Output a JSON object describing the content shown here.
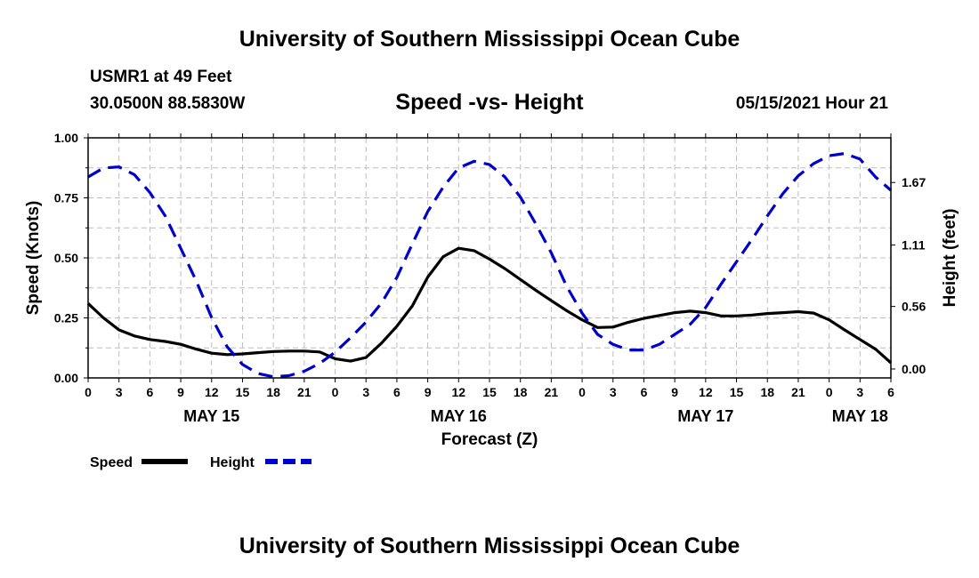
{
  "header": {
    "title": "University of Southern Mississippi Ocean Cube",
    "station": "USMR1 at 49 Feet",
    "coords": "30.0500N  88.5830W",
    "subtitle": "Speed -vs- Height",
    "datetime": "05/15/2021 Hour 21"
  },
  "footer": {
    "title": "University of Southern Mississippi Ocean Cube"
  },
  "chart_data": {
    "type": "line",
    "title": "Speed -vs- Height",
    "xlabel": "Forecast (Z)",
    "ylabel": "Speed (Knots)",
    "y2label": "Height (feet)",
    "x_unit": "hours since May 15 00Z",
    "xlim": [
      0,
      78
    ],
    "ylim": [
      0,
      1
    ],
    "y2lim": [
      -0.08,
      2.07
    ],
    "x_ticks": [
      0,
      3,
      6,
      9,
      12,
      15,
      18,
      21,
      24,
      27,
      30,
      33,
      36,
      39,
      42,
      45,
      48,
      51,
      54,
      57,
      60,
      63,
      66,
      69,
      72,
      75,
      78
    ],
    "x_tick_labels": [
      "0",
      "3",
      "6",
      "9",
      "12",
      "15",
      "18",
      "21",
      "0",
      "3",
      "6",
      "9",
      "12",
      "15",
      "18",
      "21",
      "0",
      "3",
      "6",
      "9",
      "12",
      "15",
      "18",
      "21",
      "0",
      "3",
      "6"
    ],
    "day_labels": [
      {
        "x": 12,
        "text": "MAY 15"
      },
      {
        "x": 36,
        "text": "MAY 16"
      },
      {
        "x": 60,
        "text": "MAY 17"
      },
      {
        "x": 75,
        "text": "MAY 18"
      }
    ],
    "y_ticks": [
      0.0,
      0.25,
      0.5,
      0.75,
      1.0
    ],
    "y_tick_labels": [
      "0.00",
      "0.25",
      "0.50",
      "0.75",
      "1.00"
    ],
    "y2_ticks": [
      0.0,
      0.56,
      1.11,
      1.67
    ],
    "y2_tick_labels": [
      "0.00",
      "0.56",
      "1.11",
      "1.67"
    ],
    "grid": true,
    "series": [
      {
        "name": "Speed",
        "axis": "left",
        "color": "#000000",
        "dash": "solid",
        "x": [
          0,
          1.5,
          3,
          4.5,
          6,
          7.5,
          9,
          10.5,
          12,
          13.5,
          15,
          16.5,
          18,
          19.5,
          21,
          22.5,
          24,
          25.5,
          27,
          28.5,
          30,
          31.5,
          33,
          34.5,
          36,
          37.5,
          39,
          40.5,
          42,
          43.5,
          45,
          46.5,
          48,
          49.5,
          51,
          52.5,
          54,
          55.5,
          57,
          58.5,
          60,
          61.5,
          63,
          64.5,
          66,
          67.5,
          69,
          70.5,
          72,
          73.5,
          75,
          76.5,
          78
        ],
        "values": [
          0.31,
          0.25,
          0.2,
          0.175,
          0.16,
          0.152,
          0.14,
          0.12,
          0.103,
          0.097,
          0.1,
          0.105,
          0.11,
          0.112,
          0.112,
          0.108,
          0.08,
          0.07,
          0.085,
          0.145,
          0.215,
          0.3,
          0.42,
          0.505,
          0.54,
          0.53,
          0.495,
          0.455,
          0.41,
          0.365,
          0.322,
          0.28,
          0.242,
          0.21,
          0.212,
          0.232,
          0.248,
          0.26,
          0.272,
          0.278,
          0.272,
          0.258,
          0.258,
          0.262,
          0.268,
          0.272,
          0.276,
          0.27,
          0.242,
          0.2,
          0.16,
          0.12,
          0.063
        ]
      },
      {
        "name": "Height",
        "axis": "right",
        "color": "#0000cc",
        "dash": "dashed",
        "x": [
          0,
          1.5,
          3,
          4.5,
          6,
          7.5,
          9,
          10.5,
          12,
          13.5,
          15,
          16.5,
          18,
          19.5,
          21,
          22.5,
          24,
          25.5,
          27,
          28.5,
          30,
          31.5,
          33,
          34.5,
          36,
          37.5,
          39,
          40.5,
          42,
          43.5,
          45,
          46.5,
          48,
          49.5,
          51,
          52.5,
          54,
          55.5,
          57,
          58.5,
          60,
          61.5,
          63,
          64.5,
          66,
          67.5,
          69,
          70.5,
          72,
          73.5,
          75,
          76.5,
          78
        ],
        "values": [
          1.72,
          1.8,
          1.81,
          1.74,
          1.58,
          1.37,
          1.08,
          0.79,
          0.46,
          0.2,
          0.04,
          -0.04,
          -0.07,
          -0.06,
          -0.02,
          0.05,
          0.15,
          0.28,
          0.42,
          0.59,
          0.82,
          1.12,
          1.41,
          1.63,
          1.8,
          1.86,
          1.83,
          1.72,
          1.54,
          1.3,
          1.04,
          0.74,
          0.5,
          0.31,
          0.22,
          0.17,
          0.17,
          0.22,
          0.31,
          0.4,
          0.55,
          0.76,
          0.96,
          1.16,
          1.37,
          1.57,
          1.73,
          1.84,
          1.91,
          1.93,
          1.88,
          1.72,
          1.6
        ]
      }
    ],
    "legend": [
      {
        "label": "Speed",
        "color": "#000000",
        "dash": "solid"
      },
      {
        "label": "Height",
        "color": "#0000cc",
        "dash": "dashed"
      }
    ],
    "legend_position": "bottom-left"
  }
}
